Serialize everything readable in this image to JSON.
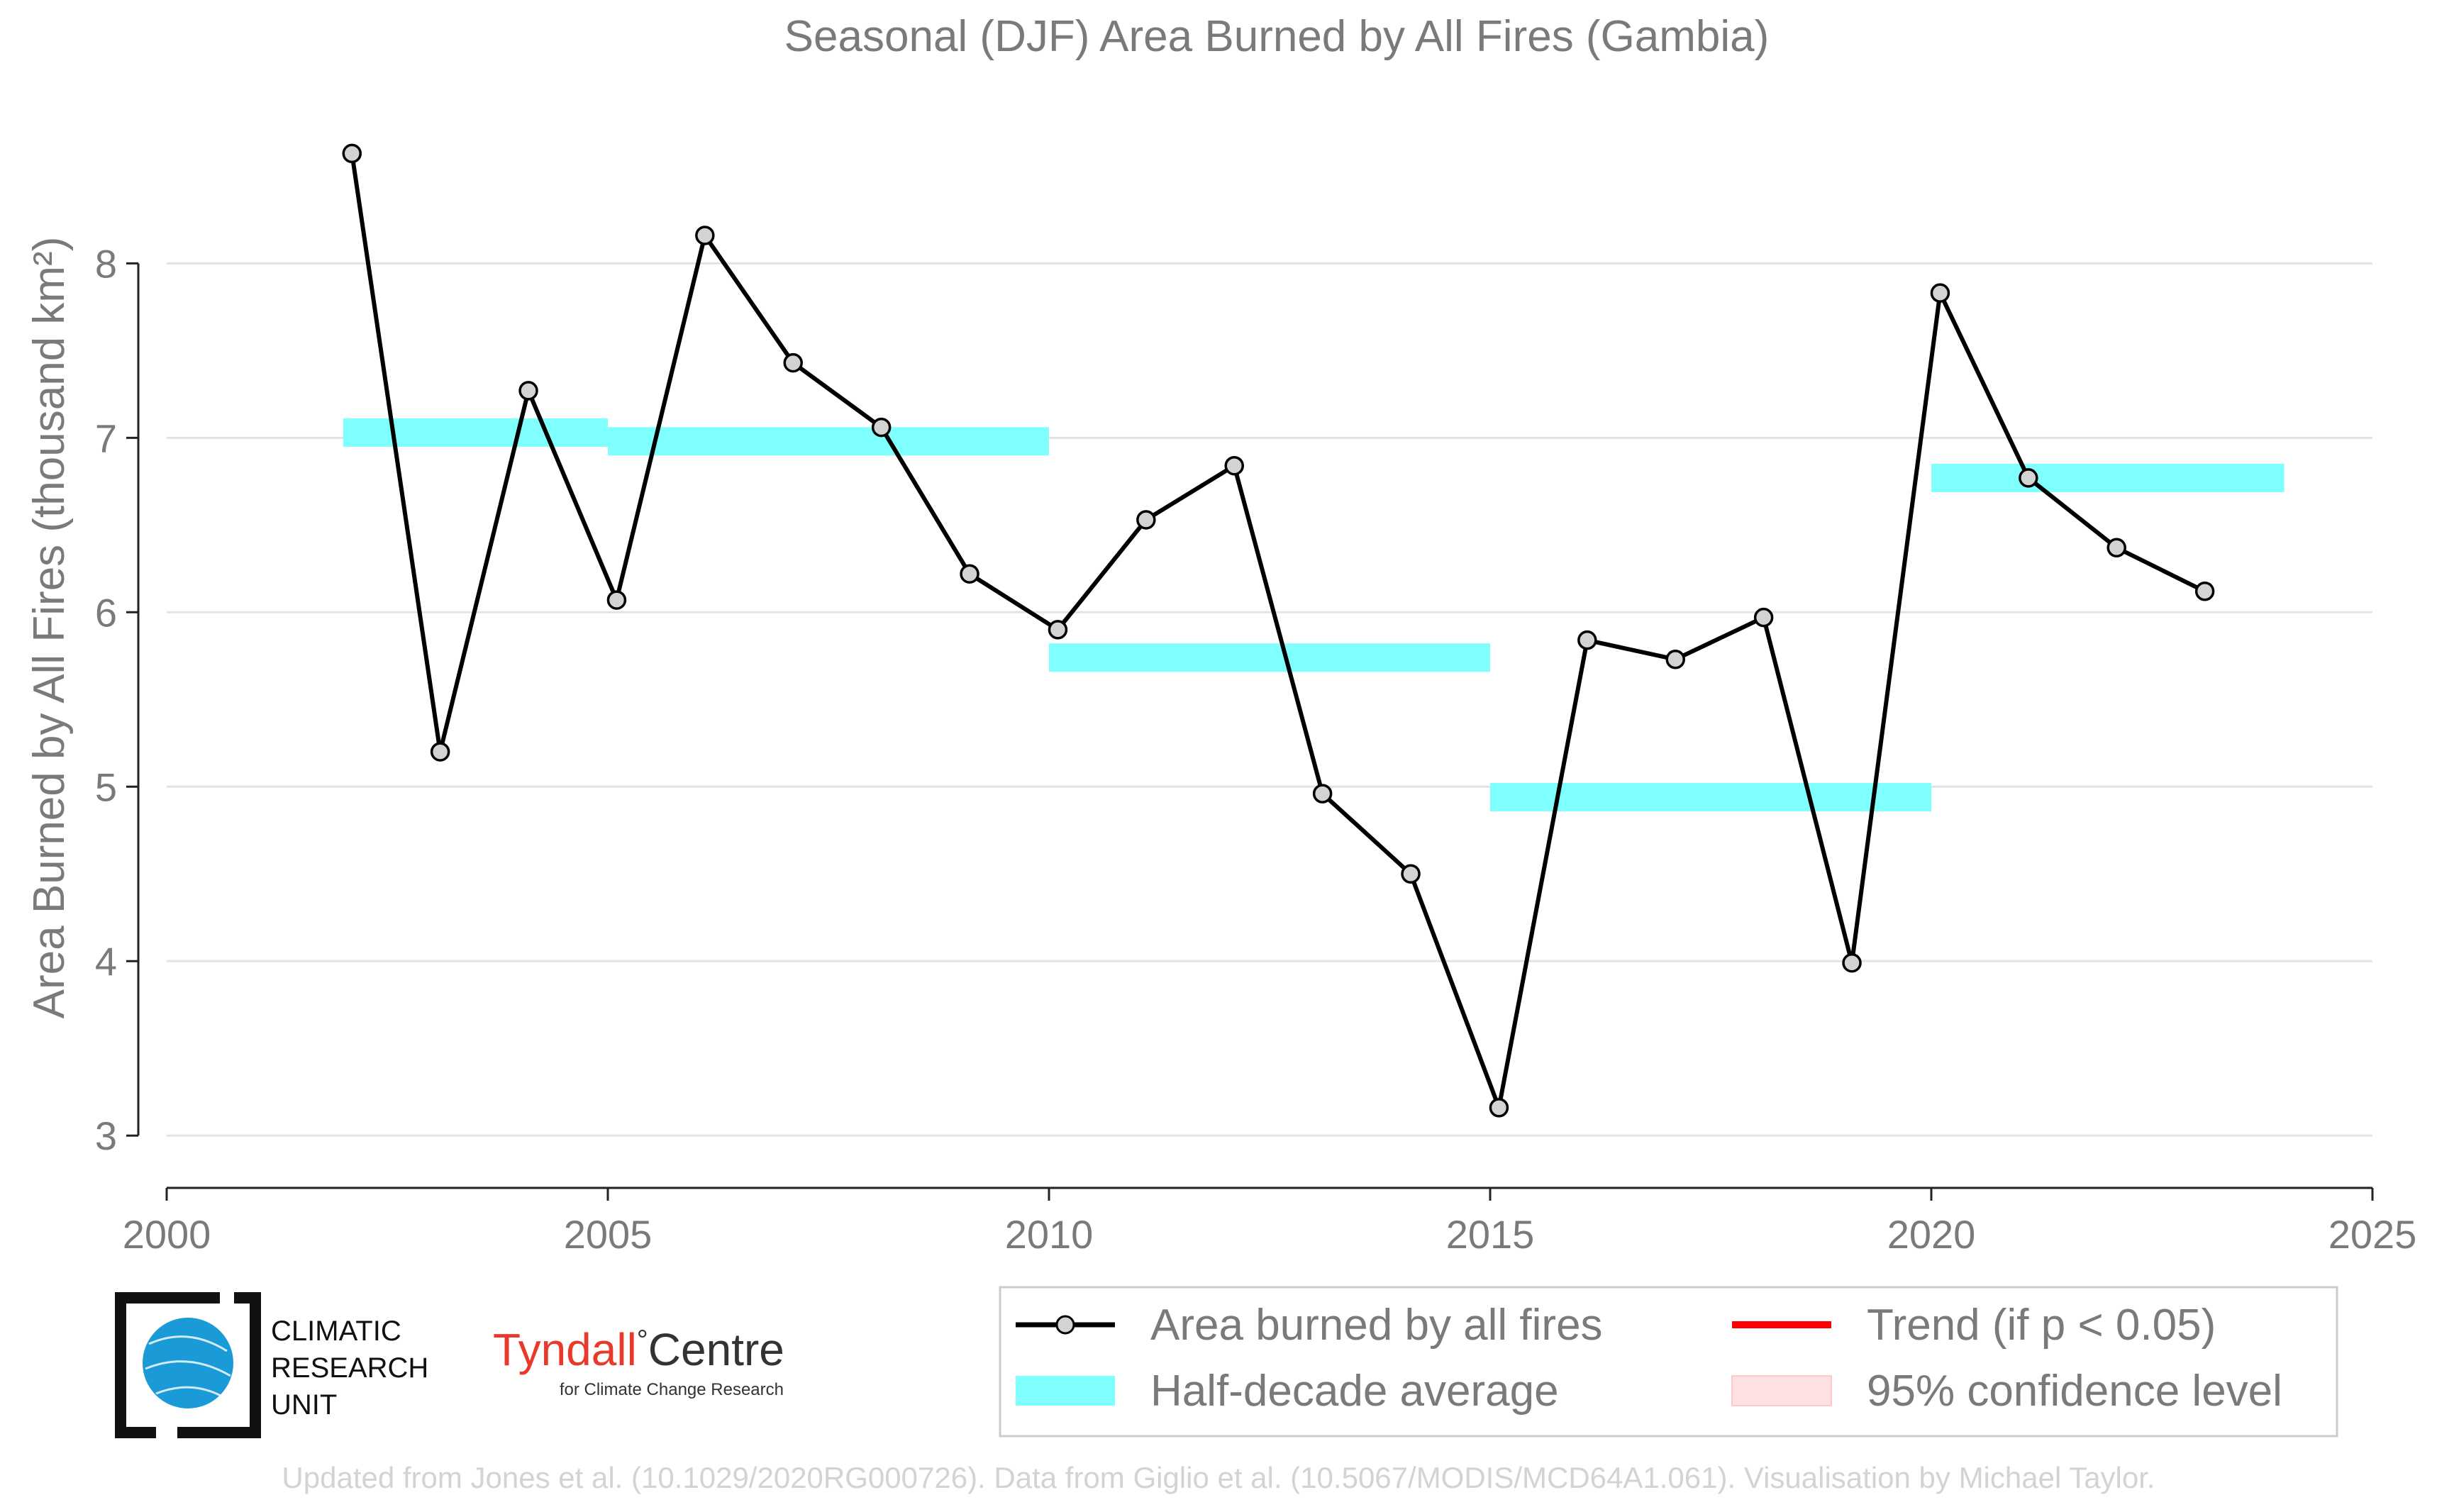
{
  "chart_data": {
    "type": "line",
    "title": "Seasonal (DJF) Area Burned by All Fires (Gambia)",
    "ylabel": "Area Burned by All Fires (thousand km²)",
    "xlabel": "",
    "xlim": [
      2000,
      2025
    ],
    "ylim": [
      2.7,
      8.9
    ],
    "x_ticks": [
      2000,
      2005,
      2010,
      2015,
      2020,
      2025
    ],
    "y_ticks": [
      3,
      4,
      5,
      6,
      7,
      8
    ],
    "grid": "horizontal",
    "legend_position": "bottom-right",
    "series": [
      {
        "name": "Area burned by all fires",
        "color": "#000000",
        "marker_color": "#d3d3d3",
        "x": [
          2002.1,
          2003.1,
          2004.1,
          2005.1,
          2006.1,
          2007.1,
          2008.1,
          2009.1,
          2010.1,
          2011.1,
          2012.1,
          2013.1,
          2014.1,
          2015.1,
          2016.1,
          2017.1,
          2018.1,
          2019.1,
          2020.1,
          2021.1,
          2022.1,
          2023.1
        ],
        "y": [
          8.63,
          5.2,
          7.27,
          6.07,
          8.16,
          7.43,
          7.06,
          6.22,
          5.9,
          6.53,
          6.84,
          4.96,
          4.5,
          3.16,
          5.84,
          5.73,
          5.97,
          3.99,
          7.83,
          6.77,
          6.37,
          6.12
        ]
      }
    ],
    "half_decade_averages": {
      "name": "Half-decade average",
      "color": "#80ffff",
      "segments": [
        {
          "x_start": 2002,
          "x_end": 2005,
          "value": 7.03
        },
        {
          "x_start": 2005,
          "x_end": 2010,
          "value": 6.98
        },
        {
          "x_start": 2010,
          "x_end": 2015,
          "value": 5.74
        },
        {
          "x_start": 2015,
          "x_end": 2020,
          "value": 4.94
        },
        {
          "x_start": 2020,
          "x_end": 2024,
          "value": 6.77
        }
      ]
    },
    "legend": [
      {
        "label": "Area burned by all fires",
        "symbol": "line-marker",
        "color": "#000000"
      },
      {
        "label": "Trend (if p < 0.05)",
        "symbol": "line",
        "color": "#ff0000"
      },
      {
        "label": "Half-decade average",
        "symbol": "band",
        "color": "#80ffff"
      },
      {
        "label": "95% confidence level",
        "symbol": "band",
        "color": "#ffe0e0"
      }
    ]
  },
  "logos": {
    "cru_line1": "CLIMATIC",
    "cru_line2": "RESEARCH",
    "cru_line3": "UNIT",
    "tyndall_main": "Tyndall",
    "tyndall_degree": "°",
    "tyndall_centre": "Centre",
    "tyndall_sub": "for Climate Change Research",
    "tyndall_color": "#e8392a",
    "cru_globe_color": "#1a9ad6"
  },
  "footer": "Updated from Jones et al. (10.1029/2020RG000726). Data from Giglio et al. (10.5067/MODIS/MCD64A1.061). Visualisation by Michael Taylor."
}
